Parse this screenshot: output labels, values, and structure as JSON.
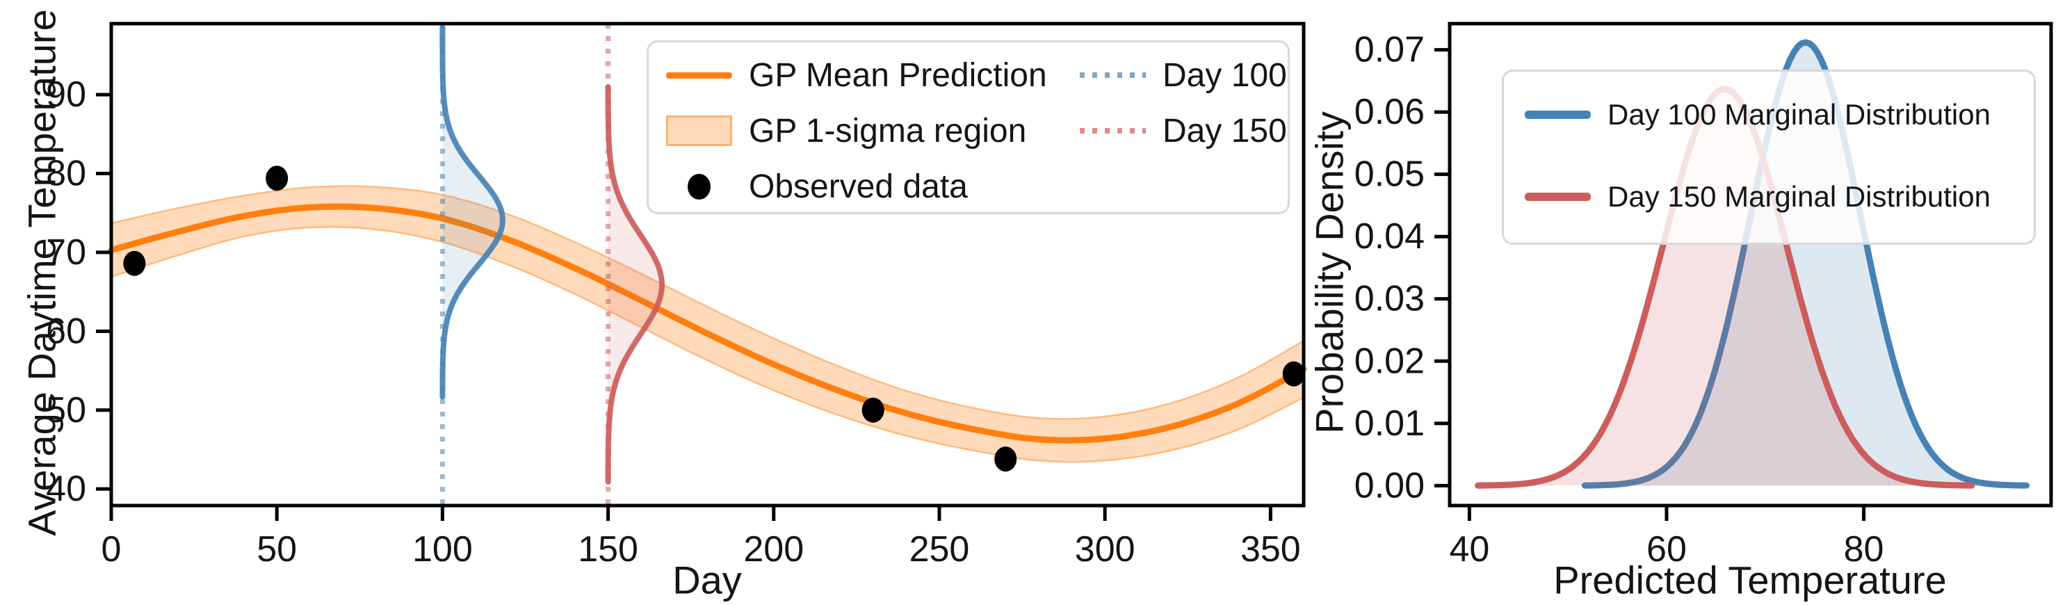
{
  "figure": {
    "background": "#ffffff",
    "text_color": "#141414"
  },
  "chart_data": [
    {
      "type": "line",
      "name": "gp-regression",
      "xlabel": "Day",
      "ylabel": "Average Daytime Temperature",
      "xlim": [
        0,
        360
      ],
      "ylim": [
        37.9,
        99.0
      ],
      "xticks": [
        0,
        50,
        100,
        150,
        200,
        250,
        300,
        350
      ],
      "yticks": [
        40,
        50,
        60,
        70,
        80,
        90
      ],
      "grid": false,
      "legend_position": "upper right",
      "gp_mean": {
        "label": "GP Mean Prediction",
        "color": "#ff7f0e",
        "days": [
          0,
          20,
          40,
          60,
          80,
          100,
          120,
          140,
          160,
          180,
          200,
          220,
          240,
          260,
          280,
          300,
          320,
          340,
          360
        ],
        "temps": [
          70.3,
          72.6,
          74.6,
          75.7,
          75.6,
          74.3,
          71.6,
          68.0,
          63.9,
          59.7,
          55.8,
          52.4,
          49.6,
          47.6,
          46.3,
          46.4,
          47.9,
          50.8,
          55.2
        ]
      },
      "gp_sigma_band": {
        "label": "GP 1-sigma region",
        "color": "#ff7f0e",
        "fill_alpha": 0.28,
        "edge_alpha": 0.45,
        "sigmas": [
          3.4,
          3.0,
          2.6,
          2.55,
          2.7,
          3.0,
          3.2,
          3.3,
          3.4,
          3.4,
          3.3,
          3.1,
          2.85,
          2.7,
          2.7,
          2.8,
          3.0,
          3.3,
          3.6
        ]
      },
      "observed": {
        "label": "Observed data",
        "color": "#000000",
        "points": [
          [
            7,
            68.6
          ],
          [
            50,
            79.4
          ],
          [
            230,
            50.0
          ],
          [
            270,
            43.8
          ],
          [
            357,
            54.6
          ]
        ]
      },
      "marginal_slices": [
        {
          "label": "Day 100",
          "day": 100,
          "mu": 74.1,
          "sigma": 5.6,
          "t_range": [
            51.7,
            98.8
          ],
          "color": "#4682b4",
          "pdf_day_scale": 255,
          "vline_alpha": 0.55,
          "fill_alpha": 0.13
        },
        {
          "label": "Day 150",
          "day": 150,
          "mu": 65.9,
          "sigma": 6.26,
          "t_range": [
            40.9,
            91.0
          ],
          "color": "#cd5c5c",
          "pdf_day_scale": 255,
          "vline_alpha": 0.55,
          "fill_alpha": 0.13
        }
      ]
    },
    {
      "type": "line",
      "name": "marginal-distributions",
      "xlabel": "Predicted Temperature",
      "ylabel": "Probability Density",
      "xlim": [
        38,
        99
      ],
      "ylim": [
        -0.0032,
        0.0742
      ],
      "xticks": [
        40,
        60,
        80
      ],
      "yticks": [
        0,
        0.01,
        0.02,
        0.03,
        0.04,
        0.05,
        0.06,
        0.07
      ],
      "ytick_decimals": 2,
      "grid": false,
      "legend_position": "upper left",
      "series": [
        {
          "label": "Day 100 Marginal Distribution",
          "mu": 74.1,
          "sigma": 5.6,
          "peak_density": 0.0712,
          "color": "#4682b4",
          "fill_alpha": 0.18
        },
        {
          "label": "Day 150 Marginal Distribution",
          "mu": 65.9,
          "sigma": 6.26,
          "peak_density": 0.0637,
          "color": "#cd5c5c",
          "fill_alpha": 0.18
        }
      ]
    }
  ]
}
